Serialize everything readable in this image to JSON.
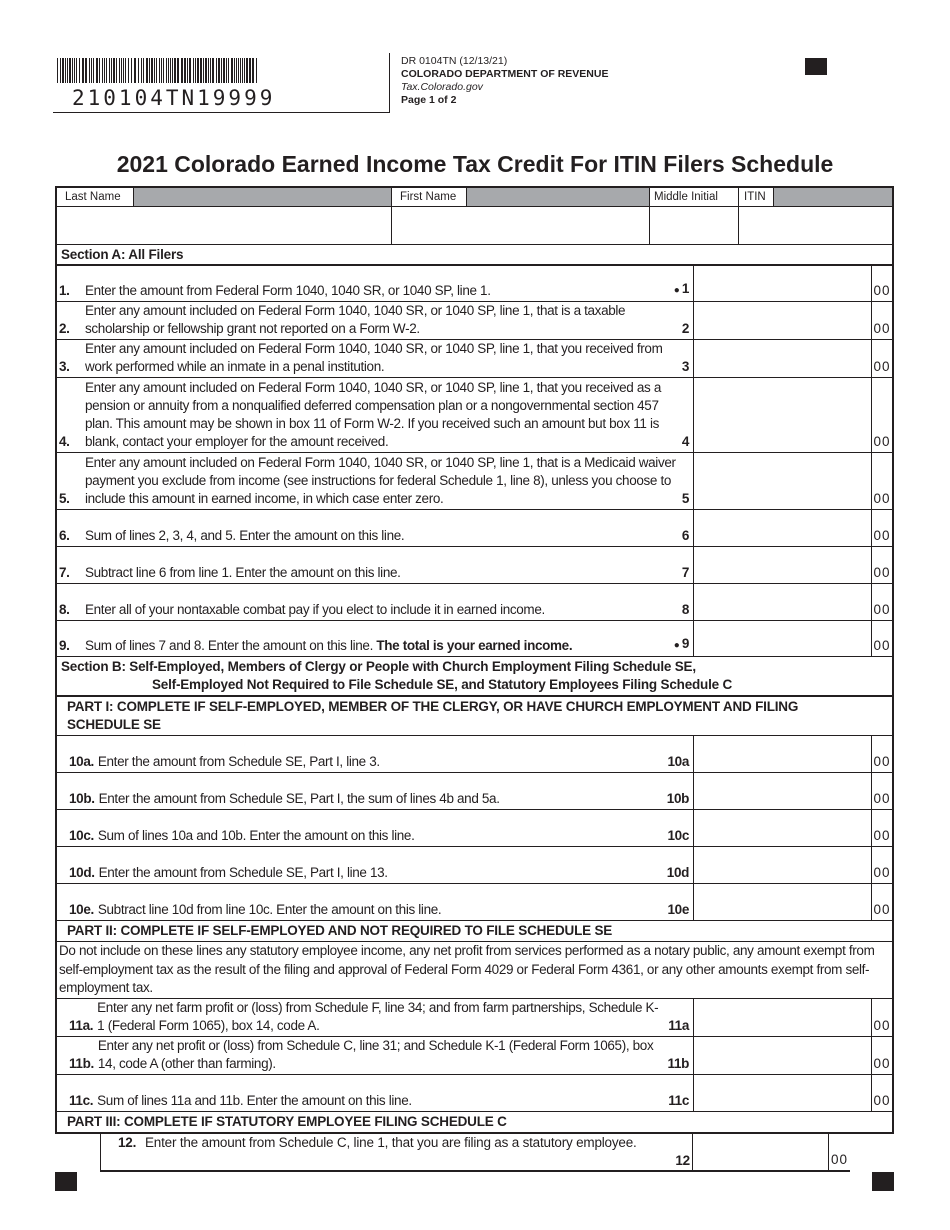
{
  "barcode": {
    "number": "210104TN19999"
  },
  "header": {
    "form_id": "DR 0104TN (12/13/21)",
    "department": "COLORADO DEPARTMENT OF REVENUE",
    "website": "Tax.Colorado.gov",
    "page": "Page 1 of 2"
  },
  "title": "2021 Colorado Earned Income Tax Credit For ITIN Filers Schedule",
  "name_fields": {
    "last_name": "Last Name",
    "first_name": "First Name",
    "middle_initial": "Middle Initial",
    "itin": "ITIN"
  },
  "section_a": "Section A: All Filers",
  "cents": "00",
  "section_a_lines": [
    {
      "num": "1.",
      "text": "Enter the amount from Federal Form 1040, 1040 SR, or 1040 SP, line 1.",
      "label": "1",
      "bullet": true
    },
    {
      "num": "2.",
      "text": "Enter any amount included on Federal Form 1040, 1040 SR, or 1040 SP, line 1, that is a taxable scholarship or fellowship grant not reported on a Form W-2.",
      "label": "2"
    },
    {
      "num": "3.",
      "text": "Enter any amount included on Federal Form 1040, 1040 SR, or 1040 SP, line 1, that you received from work performed while an inmate in a penal institution.",
      "label": "3"
    },
    {
      "num": "4.",
      "text": "Enter any amount included on Federal Form 1040, 1040 SR, or 1040 SP, line 1, that you received as a pension or annuity from a nonqualified deferred compensation plan or a nongovernmental section 457 plan. This amount may be shown in box 11 of Form W-2. If you received such an amount but box 11 is blank, contact your employer for the amount received.",
      "label": "4"
    },
    {
      "num": "5.",
      "text": "Enter any amount included on Federal Form 1040, 1040 SR, or 1040 SP, line 1, that is a Medicaid waiver payment you exclude from income (see instructions for federal Schedule 1, line 8), unless you choose to include this amount in earned income, in which case enter zero.",
      "label": "5"
    },
    {
      "num": "6.",
      "text": "Sum of lines 2, 3, 4, and 5. Enter the amount on this line.",
      "label": "6"
    },
    {
      "num": "7.",
      "text": "Subtract line 6 from line 1. Enter the amount on this line.",
      "label": "7"
    },
    {
      "num": "8.",
      "text": "Enter all of your nontaxable combat pay if you elect to include it in earned income.",
      "label": "8"
    },
    {
      "num": "9.",
      "text": "Sum of lines 7 and 8. Enter the amount on this line. ",
      "text_bold": "The total is your earned income.",
      "label": "9",
      "bullet": true
    }
  ],
  "section_b": {
    "line1": "Section B: Self-Employed, Members of Clergy or People with Church Employment Filing Schedule SE,",
    "line2": "Self-Employed Not Required to File Schedule SE, and Statutory Employees Filing Schedule C"
  },
  "part1": "PART I: COMPLETE IF SELF-EMPLOYED, MEMBER OF THE CLERGY, OR HAVE CHURCH EMPLOYMENT AND FILING SCHEDULE SE",
  "part1_lines": [
    {
      "num": "10a.",
      "text": "Enter the amount from Schedule SE, Part I, line 3.",
      "label": "10a"
    },
    {
      "num": "10b.",
      "text": "Enter the amount from Schedule SE, Part I, the sum of lines 4b and 5a.",
      "label": "10b"
    },
    {
      "num": "10c.",
      "text": "Sum of lines 10a and 10b. Enter the amount on this line.",
      "label": "10c"
    },
    {
      "num": "10d.",
      "text": "Enter the amount from Schedule SE, Part I, line 13.",
      "label": "10d"
    },
    {
      "num": "10e.",
      "text": "Subtract line 10d from line 10c. Enter the amount on this line.",
      "label": "10e"
    }
  ],
  "part2": "PART II: COMPLETE IF SELF-EMPLOYED AND NOT REQUIRED TO FILE SCHEDULE SE",
  "part2_note": "Do not include on these lines any statutory employee income, any net profit from services performed as a notary public, any amount exempt from self-employment tax as the result of the filing and approval of Federal Form 4029 or Federal Form 4361, or any other amounts exempt from self-employment tax.",
  "part2_lines": [
    {
      "num": "11a.",
      "text": "Enter any net farm profit or (loss) from Schedule F, line 34; and from farm partnerships, Schedule K-1 (Federal Form 1065), box 14, code A.",
      "label": "11a"
    },
    {
      "num": "11b.",
      "text": "Enter any net profit or (loss) from Schedule C, line 31; and Schedule K-1 (Federal Form 1065), box 14, code A (other than farming).",
      "label": "11b"
    },
    {
      "num": "11c.",
      "text": "Sum of lines 11a and 11b. Enter the amount on this line.",
      "label": "11c"
    }
  ],
  "part3": "PART III: COMPLETE IF STATUTORY EMPLOYEE FILING SCHEDULE C",
  "line12": {
    "num": "12.",
    "text": "Enter the amount from Schedule C, line 1, that you are filing as a statutory employee.",
    "label": "12"
  }
}
